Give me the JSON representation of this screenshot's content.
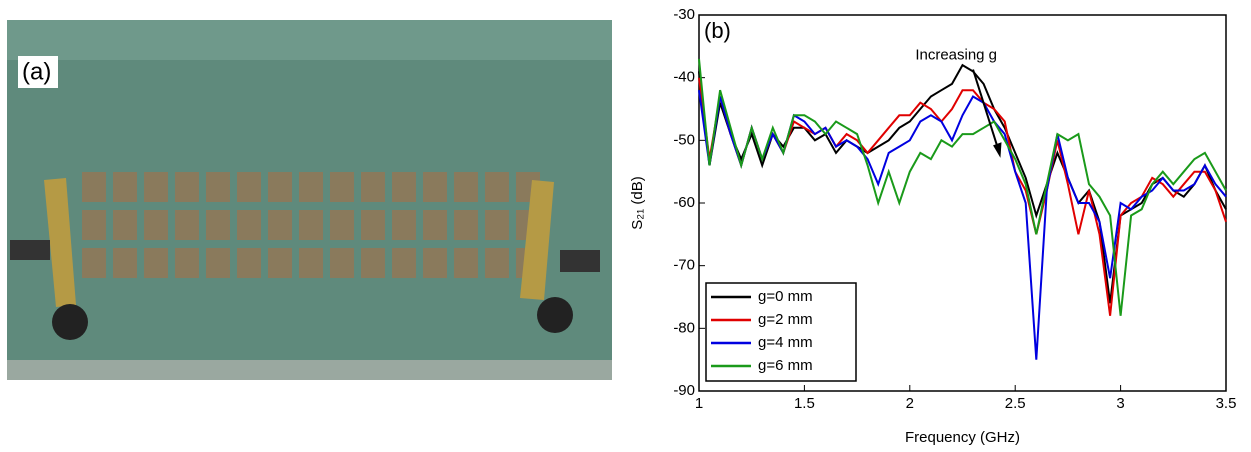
{
  "panel_a_label": "(a)",
  "chart_data": {
    "type": "line",
    "title": "(b)",
    "annotation": "Increasing g",
    "xlabel": "Frequency (GHz)",
    "ylabel": "S₂₁ (dB)",
    "xlim": [
      1,
      3.5
    ],
    "ylim": [
      -90,
      -30
    ],
    "xticks": [
      1,
      1.5,
      2,
      2.5,
      3,
      3.5
    ],
    "yticks": [
      -90,
      -80,
      -70,
      -60,
      -50,
      -40,
      -30
    ],
    "legend": "lower left",
    "grid": false,
    "x": [
      1.0,
      1.05,
      1.1,
      1.15,
      1.2,
      1.25,
      1.3,
      1.35,
      1.4,
      1.45,
      1.5,
      1.55,
      1.6,
      1.65,
      1.7,
      1.75,
      1.8,
      1.85,
      1.9,
      1.95,
      2.0,
      2.05,
      2.1,
      2.15,
      2.2,
      2.25,
      2.3,
      2.35,
      2.4,
      2.45,
      2.5,
      2.55,
      2.6,
      2.65,
      2.7,
      2.75,
      2.8,
      2.85,
      2.9,
      2.95,
      3.0,
      3.05,
      3.1,
      3.15,
      3.2,
      3.25,
      3.3,
      3.35,
      3.4,
      3.45,
      3.5
    ],
    "series": [
      {
        "name": "g=0 mm",
        "color": "#000000",
        "values": [
          -39,
          -54,
          -44,
          -49,
          -53,
          -49,
          -54,
          -49,
          -51,
          -48,
          -48,
          -50,
          -49,
          -52,
          -50,
          -51,
          -52,
          -51,
          -50,
          -48,
          -47,
          -45,
          -43,
          -42,
          -41,
          -38,
          -39,
          -41,
          -45,
          -48,
          -52,
          -56,
          -62,
          -57,
          -52,
          -56,
          -60,
          -58,
          -63,
          -76,
          -62,
          -61,
          -60,
          -57,
          -56,
          -58,
          -59,
          -57,
          -54,
          -58,
          -61
        ]
      },
      {
        "name": "g=2 mm",
        "color": "#e00000",
        "values": [
          -40,
          -53,
          -43,
          -49,
          -54,
          -48,
          -53,
          -49,
          -52,
          -47,
          -48,
          -49,
          -48,
          -51,
          -49,
          -50,
          -52,
          -50,
          -48,
          -46,
          -46,
          -44,
          -45,
          -47,
          -45,
          -42,
          -42,
          -44,
          -45,
          -47,
          -55,
          -58,
          -65,
          -58,
          -50,
          -57,
          -65,
          -58,
          -65,
          -78,
          -62,
          -60,
          -59,
          -56,
          -57,
          -59,
          -57,
          -55,
          -55,
          -58,
          -63
        ]
      },
      {
        "name": "g=4 mm",
        "color": "#0000e0",
        "values": [
          -42,
          -54,
          -43,
          -49,
          -54,
          -48,
          -53,
          -49,
          -52,
          -46,
          -47,
          -49,
          -48,
          -51,
          -50,
          -51,
          -53,
          -57,
          -52,
          -51,
          -50,
          -47,
          -46,
          -47,
          -50,
          -46,
          -43,
          -44,
          -47,
          -49,
          -55,
          -60,
          -85,
          -58,
          -49,
          -56,
          -60,
          -60,
          -63,
          -72,
          -60,
          -61,
          -59,
          -58,
          -56,
          -58,
          -58,
          -57,
          -54,
          -57,
          -59
        ]
      },
      {
        "name": "g=6 mm",
        "color": "#1a9a1a",
        "values": [
          -37,
          -54,
          -42,
          -48,
          -54,
          -48,
          -53,
          -48,
          -52,
          -46,
          -46,
          -47,
          -49,
          -47,
          -48,
          -49,
          -54,
          -60,
          -55,
          -60,
          -55,
          -52,
          -53,
          -50,
          -51,
          -49,
          -49,
          -48,
          -47,
          -50,
          -53,
          -57,
          -65,
          -57,
          -49,
          -50,
          -49,
          -57,
          -59,
          -62,
          -78,
          -62,
          -61,
          -57,
          -55,
          -57,
          -55,
          -53,
          -52,
          -55,
          -58
        ]
      }
    ]
  }
}
